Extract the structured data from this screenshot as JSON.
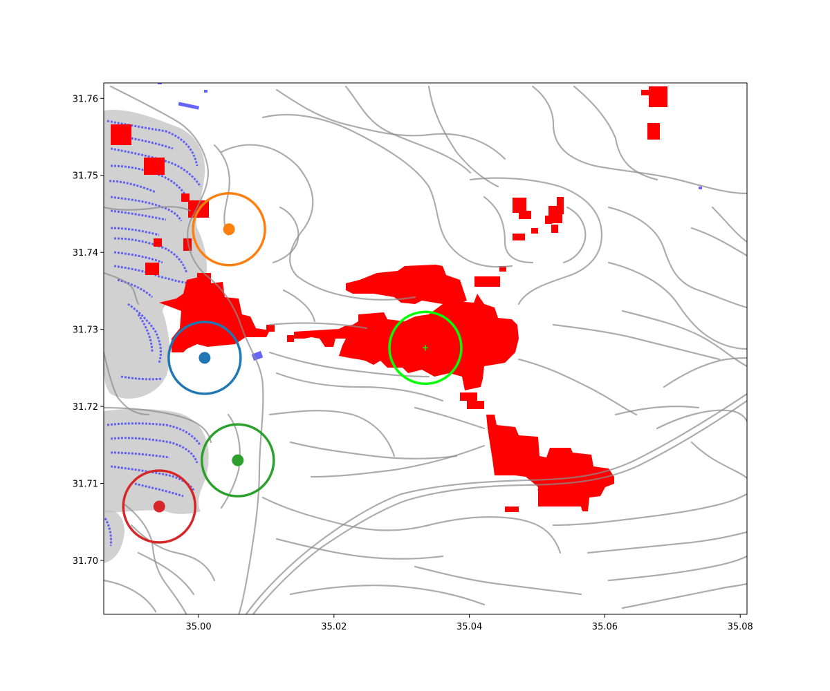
{
  "axes": {
    "x_ticks": [
      "35.00",
      "35.02",
      "35.04",
      "35.06",
      "35.08"
    ],
    "y_ticks": [
      "31.70",
      "31.71",
      "31.72",
      "31.73",
      "31.74",
      "31.75",
      "31.76"
    ]
  },
  "chart_data": {
    "type": "scatter",
    "xlim": [
      34.986,
      35.081
    ],
    "ylim": [
      31.693,
      31.762
    ],
    "grid": false,
    "layers": {
      "roads": {
        "color": "#999999",
        "style": "grey line network"
      },
      "buildings": {
        "color": "#3333ff",
        "style": "blue footprints with grey buffer"
      },
      "fire_area": {
        "color": "#ff0000",
        "style": "red raster cells"
      }
    },
    "points": [
      {
        "x": 35.0009,
        "y": 31.7263,
        "color": "#1f77b4"
      },
      {
        "x": 35.0045,
        "y": 31.743,
        "color": "#ff7f0e"
      },
      {
        "x": 35.0058,
        "y": 31.713,
        "color": "#2ca02c"
      },
      {
        "x": 34.9942,
        "y": 31.707,
        "color": "#d62728"
      }
    ],
    "center_marker": {
      "x": 35.0335,
      "y": 31.7276,
      "color": "#00ff00",
      "marker": "+"
    }
  }
}
